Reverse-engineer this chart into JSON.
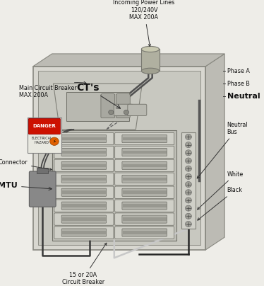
{
  "bg_color": "#eeede8",
  "box_color": "#d8d7d0",
  "box_edge_color": "#888880",
  "box_face_inner": "#c8c8c0",
  "box_shadow_color": "#bcbbb4",
  "conduit_color": "#a8a898",
  "conduit_edge": "#787870",
  "breaker_panel_bg": "#c0c0b8",
  "breaker_bg": "#d0d0c8",
  "breaker_switch": "#b0b0a8",
  "breaker_switch_inner": "#989890",
  "main_breaker_bg": "#c8c8c0",
  "ct_color": "#b8b8b0",
  "neutral_bus_bg": "#d0d0c8",
  "neutral_bus_screw": "#a0a098",
  "wire_dark": "#404040",
  "wire_light": "#d0d0c8",
  "mtu_color": "#888888",
  "mtu_edge": "#606060",
  "danger_red": "#cc1100",
  "danger_white_bg": "#f0f0e8",
  "label_color": "#111111",
  "arrow_color": "#333333",
  "labels": {
    "incoming_power": "Incoming Power Lines\n120/240V\nMAX 200A",
    "main_breaker": "Main Circuit Breaker\nMAX 200A",
    "cts": "CT's",
    "phase_a": "Phase A",
    "phase_b": "Phase B",
    "neutral": "Neutral",
    "neutral_bus": "Neutral\nBus",
    "connector": "Connector",
    "mtu": "MTU",
    "white": "White",
    "black": "Black",
    "circuit_breaker": "15 or 20A\nCircuit Breaker"
  }
}
